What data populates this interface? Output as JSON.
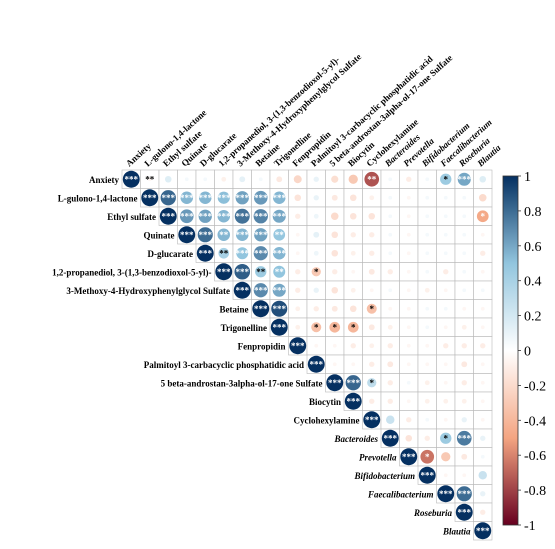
{
  "chart_data": {
    "type": "heatmap",
    "shape": "upper-triangle-circles",
    "variables": [
      {
        "label": "Anxiety",
        "italic": false
      },
      {
        "label": "L-gulono-1,4-lactone",
        "italic": false
      },
      {
        "label": "Ethyl sulfate",
        "italic": false
      },
      {
        "label": "Quinate",
        "italic": false
      },
      {
        "label": "D-glucarate",
        "italic": false
      },
      {
        "label": "1,2-propanediol, 3-(1,3-benzodioxol-5-yl)-",
        "italic": false
      },
      {
        "label": "3-Methoxy-4-Hydroxyphenylglycol Sulfate",
        "italic": false
      },
      {
        "label": "Betaine",
        "italic": false
      },
      {
        "label": "Trigonelline",
        "italic": false
      },
      {
        "label": "Fenpropidin",
        "italic": false
      },
      {
        "label": "Palmitoyl 3-carbacyclic phosphatidic acid",
        "italic": false
      },
      {
        "label": "5 beta-androstan-3alpha-ol-17-one Sulfate",
        "italic": false
      },
      {
        "label": "Biocytin",
        "italic": false
      },
      {
        "label": "Cyclohexylamine",
        "italic": false
      },
      {
        "label": "Bacteroides",
        "italic": true
      },
      {
        "label": "Prevotella",
        "italic": true
      },
      {
        "label": "Bifidobacterium",
        "italic": true
      },
      {
        "label": "Faecalibacterium",
        "italic": true
      },
      {
        "label": "Roseburia",
        "italic": true
      },
      {
        "label": "Blautia",
        "italic": true
      }
    ],
    "matrix": [
      [
        1.0,
        -0.05,
        0.15,
        0.05,
        0.05,
        -0.08,
        0.12,
        0.05,
        -0.12,
        -0.22,
        0.1,
        -0.18,
        -0.3,
        -0.75,
        0.05,
        -0.1,
        0.05,
        0.45,
        0.6,
        0.15
      ],
      [
        -0.05,
        1.0,
        0.82,
        0.55,
        0.55,
        0.52,
        0.62,
        0.65,
        0.55,
        -0.15,
        0.1,
        -0.12,
        -0.15,
        -0.08,
        0.05,
        -0.05,
        0.05,
        0.05,
        0.05,
        -0.2
      ],
      [
        0.15,
        0.82,
        1.0,
        0.65,
        0.62,
        0.55,
        0.78,
        0.72,
        0.6,
        -0.1,
        0.08,
        -0.2,
        -0.15,
        -0.15,
        0.05,
        -0.05,
        0.05,
        0.05,
        0.05,
        -0.48
      ],
      [
        0.05,
        0.55,
        0.65,
        1.0,
        0.8,
        0.55,
        0.55,
        0.62,
        0.48,
        -0.05,
        0.12,
        -0.15,
        -0.1,
        -0.1,
        0.05,
        -0.05,
        0.05,
        0.05,
        0.05,
        -0.05
      ],
      [
        0.05,
        0.55,
        0.62,
        0.8,
        1.0,
        0.4,
        0.5,
        0.7,
        0.55,
        -0.05,
        0.08,
        -0.15,
        -0.08,
        -0.1,
        0.05,
        -0.05,
        0.05,
        0.05,
        0.05,
        -0.1
      ],
      [
        -0.08,
        0.52,
        0.55,
        0.55,
        0.4,
        1.0,
        0.85,
        0.45,
        0.5,
        -0.1,
        -0.3,
        -0.1,
        -0.05,
        -0.12,
        -0.1,
        -0.05,
        0.05,
        -0.1,
        0.05,
        -0.05
      ],
      [
        0.12,
        0.62,
        0.78,
        0.55,
        0.5,
        0.85,
        1.0,
        0.7,
        0.6,
        -0.1,
        0.1,
        -0.15,
        -0.08,
        -0.05,
        0.05,
        -0.05,
        -0.08,
        -0.05,
        0.05,
        0.05
      ],
      [
        0.05,
        0.65,
        0.72,
        0.62,
        0.7,
        0.45,
        0.7,
        1.0,
        0.9,
        -0.08,
        -0.1,
        -0.12,
        -0.15,
        -0.35,
        -0.05,
        -0.05,
        0.05,
        0.05,
        -0.05,
        -0.05
      ],
      [
        -0.12,
        0.55,
        0.6,
        0.48,
        0.55,
        0.5,
        0.6,
        0.9,
        1.0,
        -0.08,
        -0.35,
        -0.4,
        -0.4,
        -0.12,
        -0.08,
        -0.05,
        0.05,
        -0.05,
        -0.08,
        -0.05
      ],
      [
        -0.22,
        -0.15,
        -0.1,
        -0.05,
        -0.05,
        -0.1,
        -0.1,
        -0.08,
        -0.08,
        1.0,
        -0.05,
        -0.05,
        -0.1,
        -0.08,
        -0.1,
        -0.05,
        -0.05,
        -0.1,
        -0.1,
        -0.1
      ],
      [
        0.1,
        0.1,
        0.08,
        0.12,
        0.08,
        -0.3,
        0.1,
        -0.1,
        -0.35,
        -0.05,
        1.0,
        -0.05,
        -0.05,
        -0.1,
        -0.12,
        -0.05,
        -0.05,
        -0.05,
        -0.12,
        -0.05
      ],
      [
        -0.18,
        -0.12,
        -0.2,
        -0.15,
        -0.15,
        -0.1,
        -0.15,
        -0.12,
        -0.4,
        -0.05,
        -0.05,
        1.0,
        0.82,
        0.3,
        -0.1,
        0.05,
        -0.08,
        -0.05,
        -0.1,
        -0.05
      ],
      [
        -0.3,
        -0.15,
        -0.15,
        -0.1,
        -0.08,
        -0.05,
        -0.08,
        -0.15,
        -0.4,
        -0.1,
        -0.05,
        0.82,
        1.0,
        -0.1,
        -0.1,
        -0.05,
        -0.08,
        -0.08,
        -0.08,
        -0.05
      ],
      [
        -0.75,
        -0.08,
        -0.15,
        -0.1,
        -0.1,
        -0.12,
        -0.05,
        -0.35,
        -0.12,
        -0.08,
        -0.1,
        0.3,
        -0.1,
        1.0,
        0.25,
        -0.1,
        0.05,
        -0.05,
        0.1,
        -0.05
      ],
      [
        0.05,
        0.05,
        0.05,
        0.05,
        0.05,
        -0.1,
        0.05,
        -0.05,
        -0.08,
        -0.1,
        -0.12,
        -0.1,
        -0.1,
        0.25,
        1.0,
        -0.15,
        -0.1,
        0.45,
        0.75,
        0.1
      ],
      [
        -0.1,
        -0.05,
        -0.05,
        -0.05,
        -0.05,
        -0.05,
        -0.05,
        -0.05,
        -0.05,
        -0.05,
        -0.05,
        0.05,
        -0.05,
        -0.1,
        -0.15,
        1.0,
        -0.65,
        -0.3,
        -0.12,
        0.05
      ],
      [
        0.05,
        0.05,
        0.05,
        0.05,
        0.05,
        0.05,
        -0.08,
        0.05,
        0.05,
        -0.05,
        -0.05,
        -0.08,
        -0.08,
        0.05,
        -0.1,
        -0.65,
        1.0,
        -0.05,
        -0.05,
        0.25
      ],
      [
        0.45,
        0.05,
        0.05,
        0.05,
        0.05,
        -0.1,
        -0.05,
        0.05,
        -0.05,
        -0.1,
        -0.05,
        -0.05,
        -0.08,
        -0.05,
        0.45,
        -0.3,
        -0.05,
        1.0,
        0.8,
        0.1
      ],
      [
        0.6,
        0.05,
        0.05,
        0.05,
        0.05,
        0.05,
        0.05,
        -0.05,
        -0.08,
        -0.1,
        -0.12,
        -0.1,
        -0.08,
        0.1,
        0.75,
        -0.12,
        -0.05,
        0.8,
        1.0,
        -0.1
      ],
      [
        0.15,
        -0.2,
        -0.48,
        -0.05,
        -0.1,
        -0.05,
        0.05,
        -0.05,
        -0.05,
        -0.1,
        -0.05,
        -0.05,
        -0.05,
        -0.05,
        0.1,
        0.05,
        0.25,
        0.1,
        -0.1,
        1.0
      ]
    ],
    "significance": [
      [
        0,
        1,
        2
      ],
      [
        0,
        17,
        1
      ],
      [
        0,
        18,
        3
      ],
      [
        0,
        13,
        2
      ],
      [
        1,
        2,
        3
      ],
      [
        1,
        3,
        3
      ],
      [
        1,
        4,
        3
      ],
      [
        1,
        5,
        3
      ],
      [
        1,
        6,
        3
      ],
      [
        1,
        7,
        3
      ],
      [
        1,
        8,
        3
      ],
      [
        2,
        3,
        3
      ],
      [
        2,
        4,
        3
      ],
      [
        2,
        5,
        3
      ],
      [
        2,
        6,
        3
      ],
      [
        2,
        7,
        3
      ],
      [
        2,
        8,
        3
      ],
      [
        2,
        19,
        1
      ],
      [
        3,
        4,
        3
      ],
      [
        3,
        5,
        2
      ],
      [
        3,
        6,
        3
      ],
      [
        3,
        7,
        3
      ],
      [
        3,
        8,
        2
      ],
      [
        4,
        5,
        2
      ],
      [
        4,
        6,
        3
      ],
      [
        4,
        7,
        3
      ],
      [
        4,
        8,
        3
      ],
      [
        5,
        6,
        3
      ],
      [
        5,
        7,
        2
      ],
      [
        5,
        8,
        2
      ],
      [
        6,
        7,
        3
      ],
      [
        6,
        8,
        3
      ],
      [
        7,
        8,
        3
      ],
      [
        7,
        13,
        1
      ],
      [
        8,
        11,
        1
      ],
      [
        8,
        12,
        1
      ],
      [
        8,
        10,
        1
      ],
      [
        10,
        5,
        1
      ],
      [
        11,
        12,
        3
      ],
      [
        11,
        13,
        1
      ],
      [
        14,
        18,
        3
      ],
      [
        14,
        17,
        1
      ],
      [
        15,
        16,
        1
      ],
      [
        17,
        18,
        3
      ]
    ],
    "colorbar": {
      "ticks": [
        "1",
        "0.8",
        "0.6",
        "0.4",
        "0.2",
        "0",
        "-0.2",
        "-0.4",
        "-0.6",
        "-0.8",
        "-1"
      ],
      "range": [
        -1,
        1
      ],
      "colors": {
        "neg_end": "#67001f",
        "mid_neg": "#f4a582",
        "zero": "#ffffff",
        "mid_pos": "#92c5de",
        "pos_end": "#053061"
      }
    }
  }
}
